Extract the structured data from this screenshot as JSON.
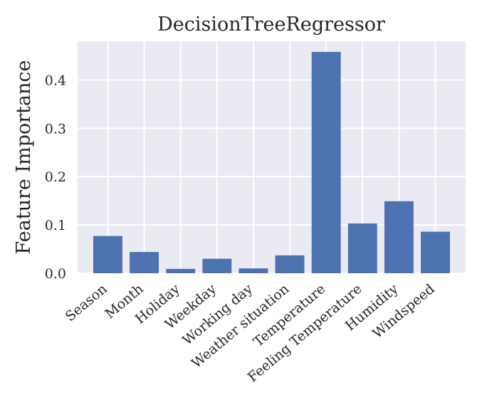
{
  "chart_data": {
    "type": "bar",
    "title": "DecisionTreeRegressor",
    "xlabel": "",
    "ylabel": "Feature Importance",
    "categories": [
      "Season",
      "Month",
      "Holiday",
      "Weekday",
      "Working day",
      "Weather situation",
      "Temperature",
      "Feeling Temperature",
      "Humidity",
      "Windspeed"
    ],
    "values": [
      0.077,
      0.044,
      0.009,
      0.03,
      0.01,
      0.037,
      0.458,
      0.103,
      0.149,
      0.086
    ],
    "ylim": [
      0,
      0.48
    ],
    "yticks": [
      0.0,
      0.1,
      0.2,
      0.3,
      0.4
    ],
    "ytick_labels": [
      "0.0",
      "0.1",
      "0.2",
      "0.3",
      "0.4"
    ],
    "grid": true,
    "style": "seaborn-darkgrid",
    "colors": {
      "bar": "#4c72b0",
      "background": "#eaeaf2",
      "grid": "#ffffff"
    }
  }
}
